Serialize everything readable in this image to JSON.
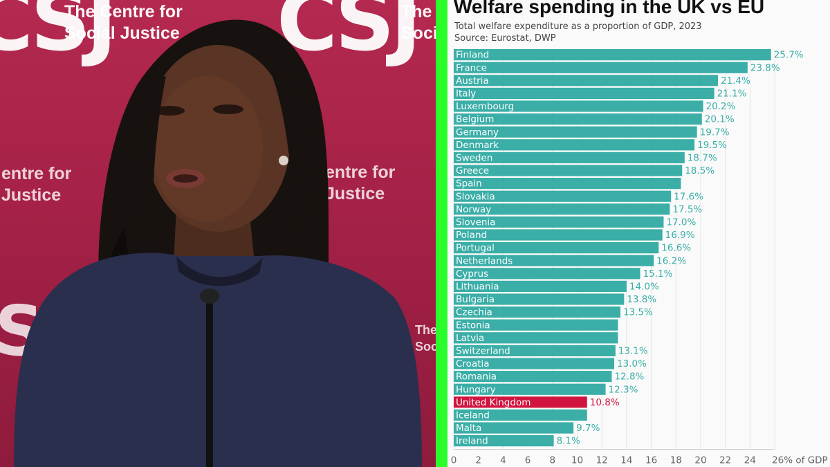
{
  "video": {
    "logo_mark": "CSJ",
    "logo_text": "The Centre for\nSocial Justice",
    "logo_text_partial": "The\nSoci",
    "backdrop_text_left": "entre for\nJustice",
    "backdrop_text_right": "entre for\nJustice",
    "backdrop_mark_partial": "S",
    "backdrop_text_small": "The\nSoci"
  },
  "colors": {
    "backdrop": "#a52147",
    "bar": "#3aaea7",
    "highlight": "#d0143f",
    "divider": "#2bff2b"
  },
  "chart_data": {
    "type": "bar",
    "orientation": "horizontal",
    "title": "Welfare spending in the UK vs EU",
    "subtitle": "Total welfare expenditure as a proportion of GDP, 2023",
    "source": "Source: Eurostat, DWP",
    "x_unit_label": "26% of GDP",
    "xlim": [
      0,
      26
    ],
    "x_ticks": [
      "0",
      "2",
      "4",
      "6",
      "8",
      "10",
      "12",
      "14",
      "16",
      "18",
      "20",
      "22",
      "24"
    ],
    "highlight_category": "United Kingdom",
    "grid": true,
    "categories": [
      "Finland",
      "France",
      "Austria",
      "Italy",
      "Luxembourg",
      "Belgium",
      "Germany",
      "Denmark",
      "Sweden",
      "Greece",
      "Spain",
      "Slovakia",
      "Norway",
      "Slovenia",
      "Poland",
      "Portugal",
      "Netherlands",
      "Cyprus",
      "Lithuania",
      "Bulgaria",
      "Czechia",
      "Estonia",
      "Latvia",
      "Switzerland",
      "Croatia",
      "Romania",
      "Hungary",
      "United Kingdom",
      "Iceland",
      "Malta",
      "Ireland"
    ],
    "values": [
      25.7,
      23.8,
      21.4,
      21.1,
      20.2,
      20.1,
      19.7,
      19.5,
      18.7,
      18.5,
      18.4,
      17.6,
      17.5,
      17.0,
      16.9,
      16.6,
      16.2,
      15.1,
      14.0,
      13.8,
      13.5,
      13.3,
      13.3,
      13.1,
      13.0,
      12.8,
      12.3,
      10.8,
      10.8,
      9.7,
      8.1
    ],
    "value_labels": [
      "25.7%",
      "23.8%",
      "21.4%",
      "21.1%",
      "20.2%",
      "20.1%",
      "19.7%",
      "19.5%",
      "18.7%",
      "18.5%",
      "",
      "17.6%",
      "17.5%",
      "17.0%",
      "16.9%",
      "16.6%",
      "16.2%",
      "15.1%",
      "14.0%",
      "13.8%",
      "13.5%",
      "",
      "",
      "13.1%",
      "13.0%",
      "12.8%",
      "12.3%",
      "10.8%",
      "",
      "9.7%",
      "8.1%"
    ]
  }
}
